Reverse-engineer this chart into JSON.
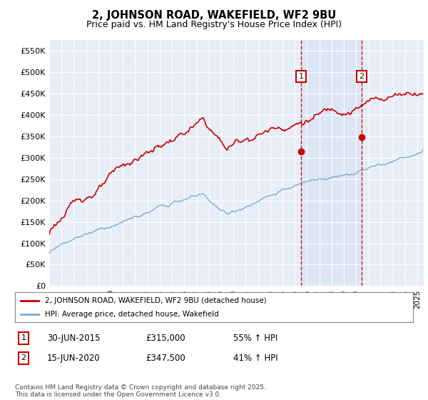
{
  "title": "2, JOHNSON ROAD, WAKEFIELD, WF2 9BU",
  "subtitle": "Price paid vs. HM Land Registry's House Price Index (HPI)",
  "ylabel_ticks": [
    "£0",
    "£50K",
    "£100K",
    "£150K",
    "£200K",
    "£250K",
    "£300K",
    "£350K",
    "£400K",
    "£450K",
    "£500K",
    "£550K"
  ],
  "ytick_vals": [
    0,
    50000,
    100000,
    150000,
    200000,
    250000,
    300000,
    350000,
    400000,
    450000,
    500000,
    550000
  ],
  "ylim": [
    0,
    575000
  ],
  "xlim_start": 1995.0,
  "xlim_end": 2025.5,
  "background_color": "#ffffff",
  "plot_bg_color": "#e8eef8",
  "grid_color": "#ffffff",
  "red_line_color": "#cc0000",
  "blue_line_color": "#7aadd4",
  "sale1_x": 2015.5,
  "sale1_y": 315000,
  "sale1_label": "1",
  "sale1_date": "30-JUN-2015",
  "sale1_price": "£315,000",
  "sale1_hpi": "55% ↑ HPI",
  "sale2_x": 2020.45,
  "sale2_y": 347500,
  "sale2_label": "2",
  "sale2_date": "15-JUN-2020",
  "sale2_price": "£347,500",
  "sale2_hpi": "41% ↑ HPI",
  "legend_line1": "2, JOHNSON ROAD, WAKEFIELD, WF2 9BU (detached house)",
  "legend_line2": "HPI: Average price, detached house, Wakefield",
  "footer": "Contains HM Land Registry data © Crown copyright and database right 2025.\nThis data is licensed under the Open Government Licence v3.0.",
  "shaded_region_start": 2015.5,
  "shaded_region_end": 2020.45
}
